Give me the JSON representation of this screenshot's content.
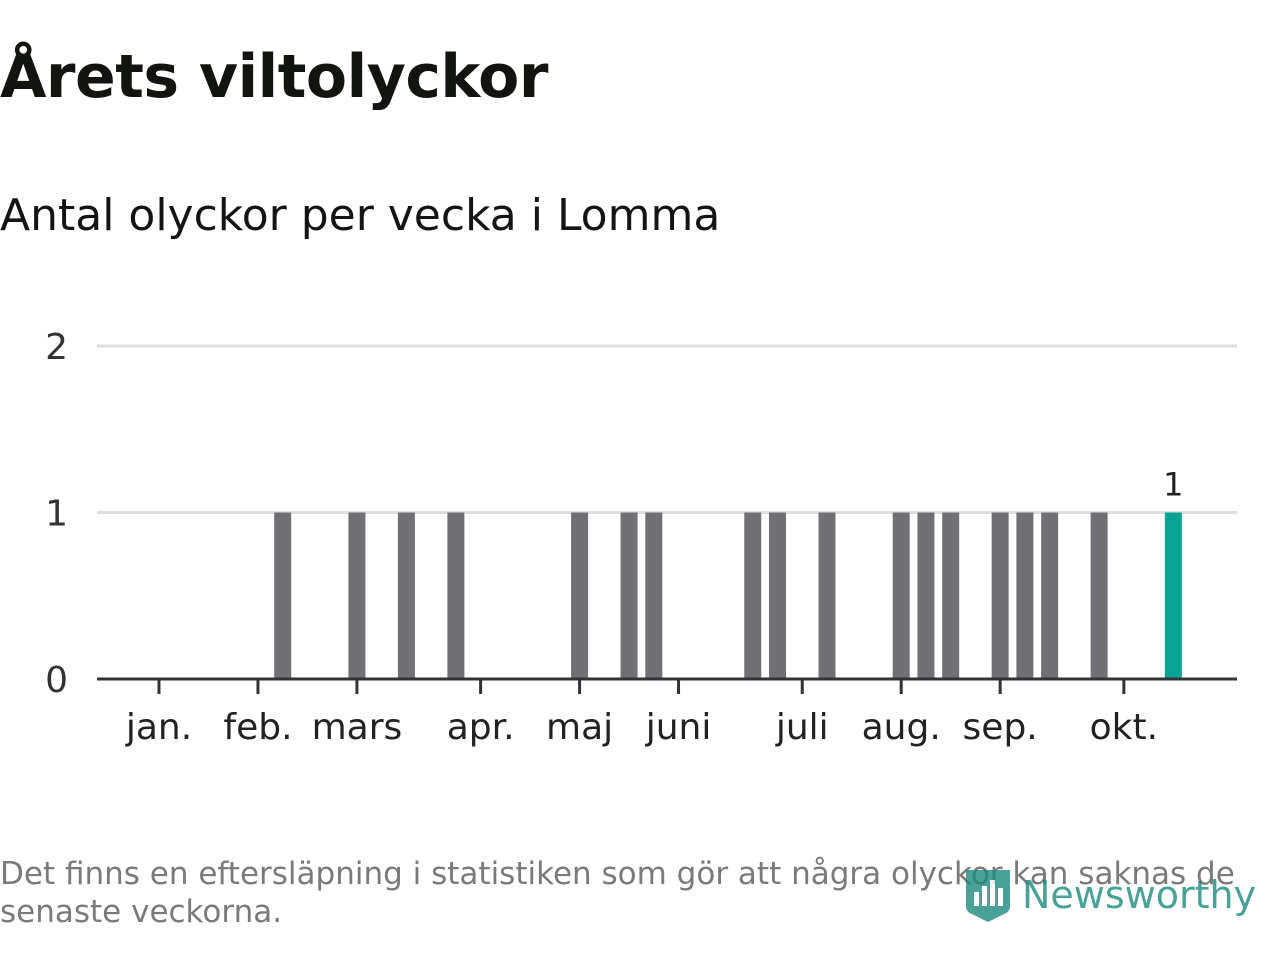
{
  "header": {
    "title": "Årets viltolyckor",
    "subtitle": "Antal olyckor per vecka i Lomma"
  },
  "footer": {
    "note": "Det finns en eftersläpning i statistiken som gör att några olyckor kan saknas de senaste veckorna.",
    "brand": "Newsworthy",
    "brand_color": "#1d8a7e"
  },
  "chart_data": {
    "type": "bar",
    "title": "Årets viltolyckor",
    "subtitle": "Antal olyckor per vecka i Lomma",
    "xlabel": "",
    "ylabel": "",
    "ylim": [
      0,
      2
    ],
    "yticks": [
      0,
      1,
      2
    ],
    "grid": true,
    "month_ticks": [
      {
        "label": "jan.",
        "week": 1
      },
      {
        "label": "feb.",
        "week": 5
      },
      {
        "label": "mars",
        "week": 9
      },
      {
        "label": "apr.",
        "week": 14
      },
      {
        "label": "maj",
        "week": 18
      },
      {
        "label": "juni",
        "week": 22
      },
      {
        "label": "juli",
        "week": 27
      },
      {
        "label": "aug.",
        "week": 31
      },
      {
        "label": "sep.",
        "week": 35
      },
      {
        "label": "okt.",
        "week": 40
      }
    ],
    "weeks": [
      1,
      2,
      3,
      4,
      5,
      6,
      7,
      8,
      9,
      10,
      11,
      12,
      13,
      14,
      15,
      16,
      17,
      18,
      19,
      20,
      21,
      22,
      23,
      24,
      25,
      26,
      27,
      28,
      29,
      30,
      31,
      32,
      33,
      34,
      35,
      36,
      37,
      38,
      39,
      40,
      41,
      42
    ],
    "values": [
      0,
      0,
      0,
      0,
      0,
      1,
      0,
      0,
      1,
      0,
      1,
      0,
      1,
      0,
      0,
      0,
      0,
      1,
      0,
      1,
      1,
      0,
      0,
      0,
      1,
      1,
      0,
      1,
      0,
      0,
      1,
      1,
      1,
      0,
      1,
      1,
      1,
      0,
      1,
      0,
      0,
      1
    ],
    "highlight_index": 41,
    "highlight_label": "1",
    "colors": {
      "bar": "#717075",
      "highlight": "#0aa294",
      "grid": "#dedede",
      "axis": "#333333"
    }
  }
}
